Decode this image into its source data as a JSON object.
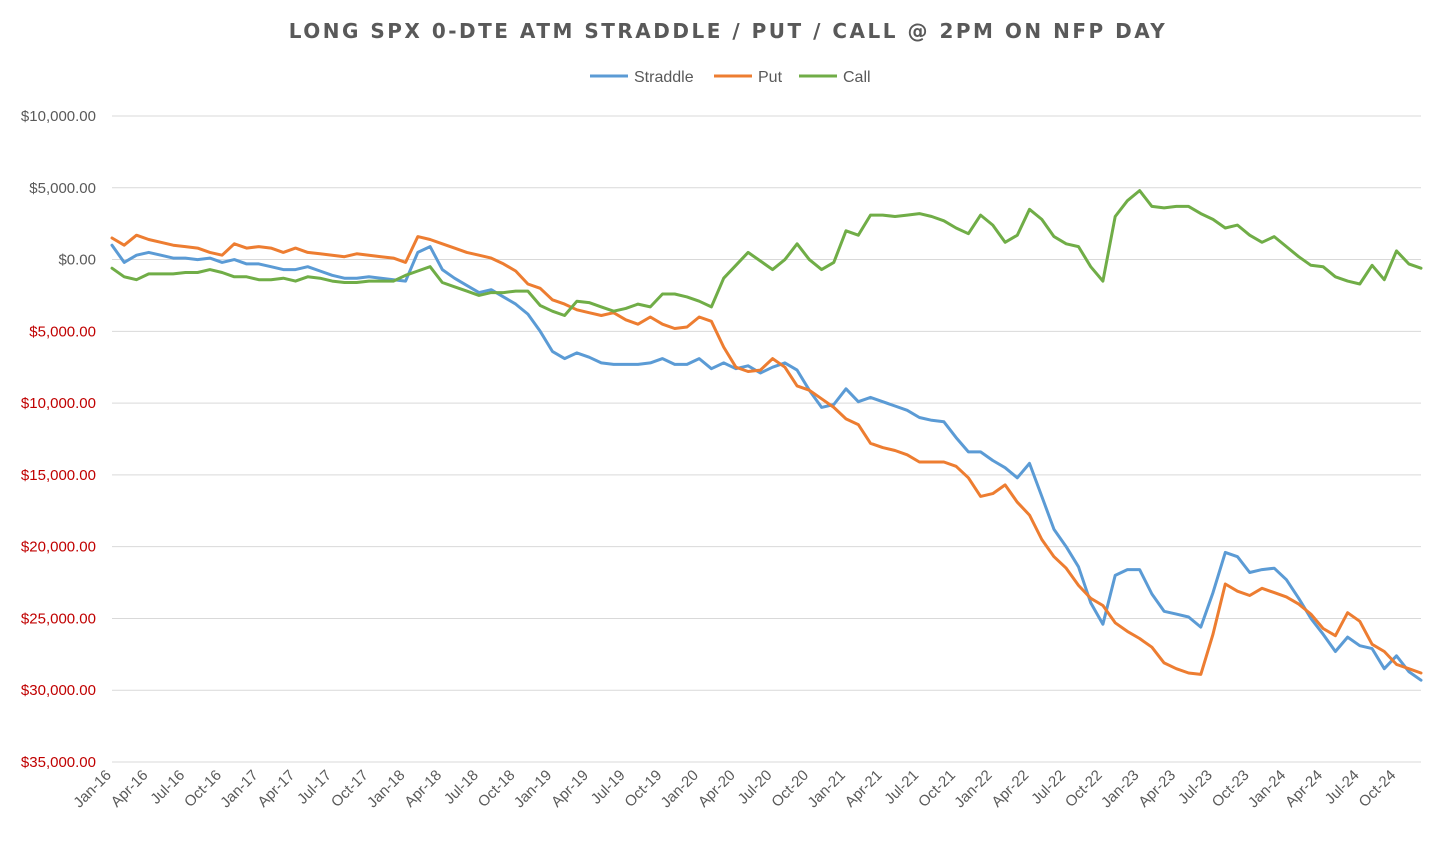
{
  "chart_data": {
    "type": "line",
    "title": "LONG SPX 0-DTE ATM STRADDLE / PUT / CALL @ 2PM ON NFP DAY",
    "y_axis": {
      "min": -35000,
      "max": 10000,
      "step": 5000,
      "tick_labels": [
        "$10,000.00",
        "$5,000.00",
        "$0.00",
        "$5,000.00",
        "$10,000.00",
        "$15,000.00",
        "$20,000.00",
        "$25,000.00",
        "$30,000.00",
        "$35,000.00"
      ],
      "tick_values": [
        10000,
        5000,
        0,
        -5000,
        -10000,
        -15000,
        -20000,
        -25000,
        -30000,
        -35000
      ],
      "positive_color": "#595959",
      "negative_color": "#c00000"
    },
    "x_axis": {
      "tick_labels": [
        "Jan-16",
        "Apr-16",
        "Jul-16",
        "Oct-16",
        "Jan-17",
        "Apr-17",
        "Jul-17",
        "Oct-17",
        "Jan-18",
        "Apr-18",
        "Jul-18",
        "Oct-18",
        "Jan-19",
        "Apr-19",
        "Jul-19",
        "Oct-19",
        "Jan-20",
        "Apr-20",
        "Jul-20",
        "Oct-20",
        "Jan-21",
        "Apr-21",
        "Jul-21",
        "Oct-21",
        "Jan-22",
        "Apr-22",
        "Jul-22",
        "Oct-22",
        "Jan-23",
        "Apr-23",
        "Jul-23",
        "Oct-23",
        "Jan-24",
        "Apr-24",
        "Jul-24",
        "Oct-24"
      ],
      "tick_step_months": 3
    },
    "grid": true,
    "legend_position": "top",
    "series": [
      {
        "name": "Straddle",
        "color": "#5b9bd5",
        "values": [
          1000,
          -200,
          300,
          500,
          300,
          100,
          100,
          0,
          100,
          -200,
          0,
          -300,
          -300,
          -500,
          -700,
          -700,
          -500,
          -800,
          -1100,
          -1300,
          -1300,
          -1200,
          -1300,
          -1400,
          -1500,
          500,
          900,
          -700,
          -1300,
          -1800,
          -2300,
          -2100,
          -2600,
          -3100,
          -3800,
          -5000,
          -6400,
          -6900,
          -6500,
          -6800,
          -7200,
          -7300,
          -7300,
          -7300,
          -7200,
          -6900,
          -7300,
          -7300,
          -6900,
          -7600,
          -7200,
          -7600,
          -7400,
          -7900,
          -7500,
          -7200,
          -7700,
          -9100,
          -10300,
          -10100,
          -9000,
          -9900,
          -9600,
          -9900,
          -10200,
          -10500,
          -11000,
          -11200,
          -11300,
          -12400,
          -13400,
          -13400,
          -14000,
          -14500,
          -15200,
          -14200,
          -16500,
          -18800,
          -20000,
          -21400,
          -23900,
          -25400,
          -22000,
          -21600,
          -21600,
          -23300,
          -24500,
          -24700,
          -24900,
          -25600,
          -23200,
          -20400,
          -20700,
          -21800,
          -21600,
          -21500,
          -22300,
          -23600,
          -25000,
          -26100,
          -27300,
          -26300,
          -26900,
          -27100,
          -28500,
          -27600,
          -28700,
          -29300
        ]
      },
      {
        "name": "Put",
        "color": "#ed7d31",
        "values": [
          1500,
          1000,
          1700,
          1400,
          1200,
          1000,
          900,
          800,
          500,
          300,
          1100,
          800,
          900,
          800,
          500,
          800,
          500,
          400,
          300,
          200,
          400,
          300,
          200,
          100,
          -200,
          1600,
          1400,
          1100,
          800,
          500,
          300,
          100,
          -300,
          -800,
          -1700,
          -2000,
          -2800,
          -3100,
          -3500,
          -3700,
          -3900,
          -3700,
          -4200,
          -4500,
          -4000,
          -4500,
          -4800,
          -4700,
          -4000,
          -4300,
          -6100,
          -7500,
          -7800,
          -7700,
          -6900,
          -7500,
          -8800,
          -9100,
          -9700,
          -10300,
          -11100,
          -11500,
          -12800,
          -13100,
          -13300,
          -13600,
          -14100,
          -14100,
          -14100,
          -14400,
          -15200,
          -16500,
          -16300,
          -15700,
          -16900,
          -17800,
          -19500,
          -20700,
          -21500,
          -22700,
          -23600,
          -24100,
          -25300,
          -25900,
          -26400,
          -27000,
          -28100,
          -28500,
          -28800,
          -28900,
          -26100,
          -22600,
          -23100,
          -23400,
          -22900,
          -23200,
          -23500,
          -24000,
          -24700,
          -25700,
          -26200,
          -24600,
          -25200,
          -26800,
          -27300,
          -28200,
          -28500,
          -28800
        ]
      },
      {
        "name": "Call",
        "color": "#70ad47",
        "values": [
          -600,
          -1200,
          -1400,
          -1000,
          -1000,
          -1000,
          -900,
          -900,
          -700,
          -900,
          -1200,
          -1200,
          -1400,
          -1400,
          -1300,
          -1500,
          -1200,
          -1300,
          -1500,
          -1600,
          -1600,
          -1500,
          -1500,
          -1500,
          -1100,
          -800,
          -500,
          -1600,
          -1900,
          -2200,
          -2500,
          -2300,
          -2300,
          -2200,
          -2200,
          -3200,
          -3600,
          -3900,
          -2900,
          -3000,
          -3300,
          -3600,
          -3400,
          -3100,
          -3300,
          -2400,
          -2400,
          -2600,
          -2900,
          -3300,
          -1300,
          -400,
          500,
          -100,
          -700,
          0,
          1100,
          0,
          -700,
          -200,
          2000,
          1700,
          3100,
          3100,
          3000,
          3100,
          3200,
          3000,
          2700,
          2200,
          1800,
          3100,
          2400,
          1200,
          1700,
          3500,
          2800,
          1600,
          1100,
          900,
          -500,
          -1500,
          3000,
          4100,
          4800,
          3700,
          3600,
          3700,
          3700,
          3200,
          2800,
          2200,
          2400,
          1700,
          1200,
          1600,
          900,
          200,
          -400,
          -500,
          -1200,
          -1500,
          -1700,
          -400,
          -1400,
          600,
          -300,
          -600
        ]
      }
    ]
  }
}
